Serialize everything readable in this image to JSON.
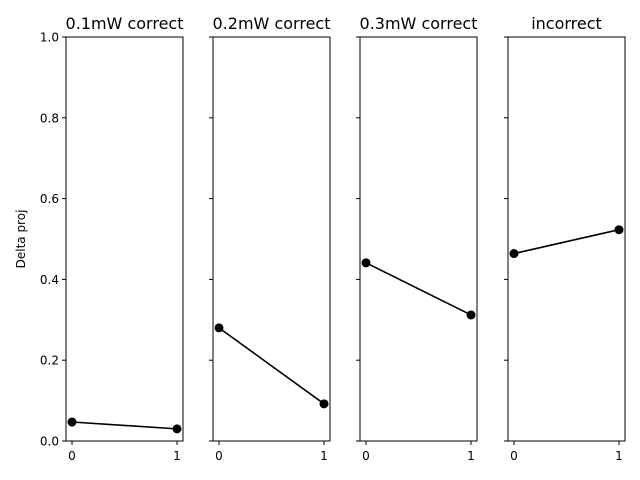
{
  "chart_data": {
    "type": "line",
    "ylabel": "Delta proj",
    "ylim": [
      0,
      1.0
    ],
    "yticks": [
      0.0,
      0.2,
      0.4,
      0.6,
      0.8,
      1.0
    ],
    "ytick_labels": [
      "0.0",
      "0.2",
      "0.4",
      "0.6",
      "0.8",
      "1.0"
    ],
    "xticks": [
      0,
      1
    ],
    "xtick_labels": [
      "0",
      "1"
    ],
    "line_color": "#000000",
    "panels": [
      {
        "title": "0.1mW correct",
        "x": [
          0,
          1
        ],
        "y": [
          0.047,
          0.03
        ]
      },
      {
        "title": "0.2mW correct",
        "x": [
          0,
          1
        ],
        "y": [
          0.28,
          0.092
        ]
      },
      {
        "title": "0.3mW correct",
        "x": [
          0,
          1
        ],
        "y": [
          0.441,
          0.312
        ]
      },
      {
        "title": "incorrect",
        "x": [
          0,
          1
        ],
        "y": [
          0.464,
          0.523
        ]
      }
    ]
  }
}
